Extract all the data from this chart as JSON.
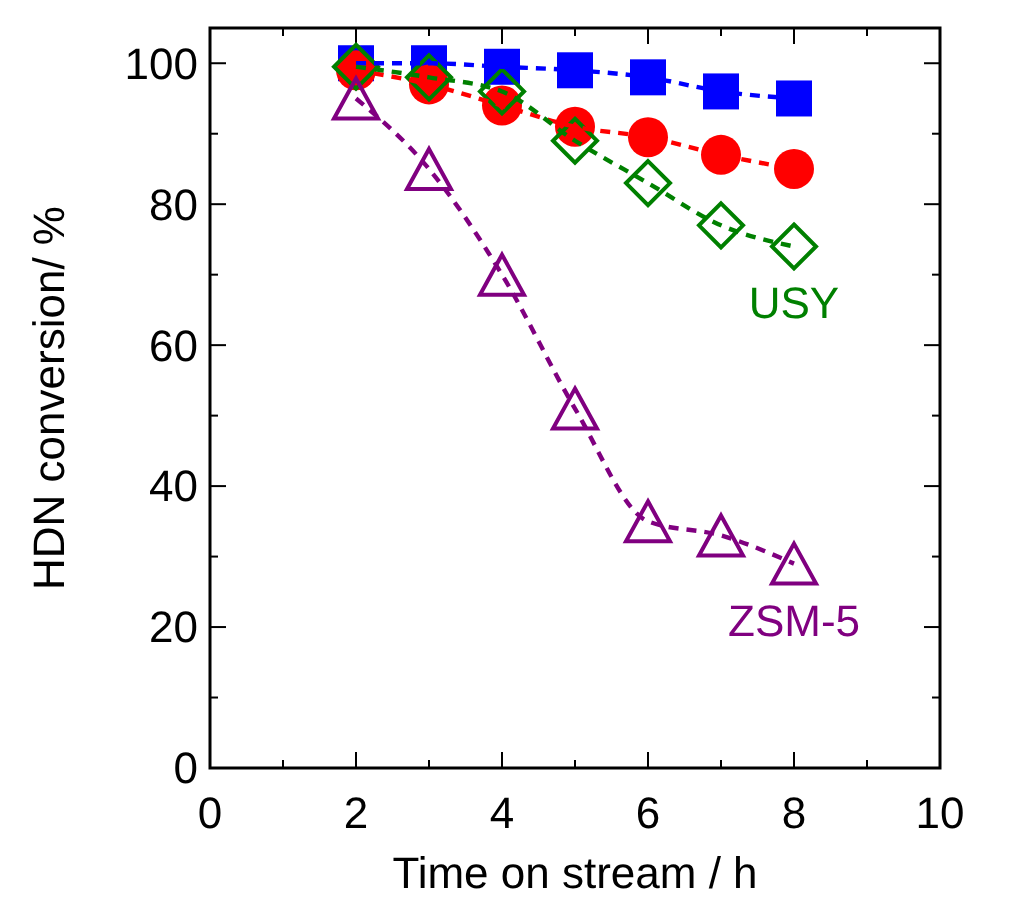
{
  "chart_data": {
    "type": "line",
    "xlabel": "Time on stream / h",
    "ylabel": "HDN conversion/ %",
    "x": [
      2,
      3,
      4,
      5,
      6,
      7,
      8
    ],
    "series": [
      {
        "color": "#0000ff",
        "marker": "square",
        "values": [
          100,
          100,
          99.5,
          99,
          98,
          96,
          95
        ]
      },
      {
        "color": "#ff0000",
        "marker": "circle",
        "values": [
          99,
          97,
          94,
          91,
          89.5,
          87,
          85
        ]
      },
      {
        "name": "USY",
        "color": "#008000",
        "marker": "diamond",
        "values": [
          99.5,
          98,
          96,
          89,
          83,
          77,
          74
        ]
      },
      {
        "name": "ZSM-5",
        "color": "#800080",
        "marker": "triangle",
        "values": [
          95,
          85,
          70,
          51,
          35,
          33,
          29
        ]
      }
    ],
    "line_style": "dashed",
    "xlim": [
      0,
      10
    ],
    "xticks": [
      0,
      2,
      4,
      6,
      8,
      10
    ],
    "ylim": [
      0,
      105
    ],
    "yticks": [
      0,
      20,
      40,
      60,
      80,
      100
    ],
    "grid": false
  }
}
